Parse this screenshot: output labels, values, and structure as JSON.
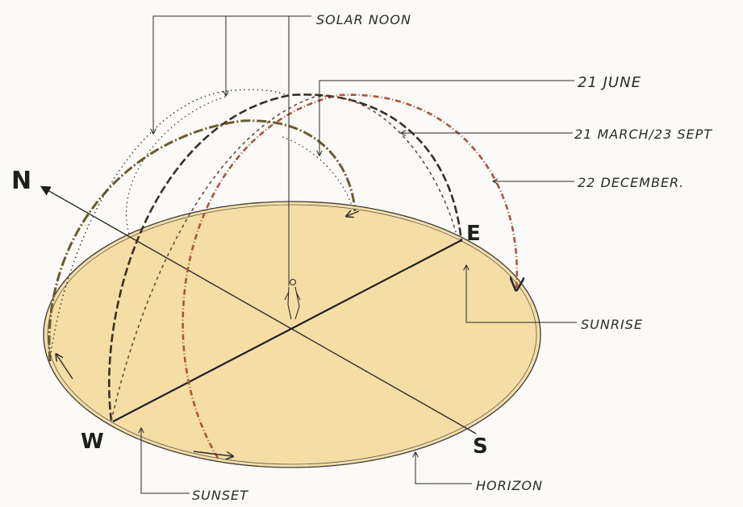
{
  "diagram": {
    "cardinals": {
      "north": "N",
      "east": "E",
      "south": "S",
      "west": "W"
    },
    "labels": {
      "solar_noon": "SOLAR NOON",
      "june": "21 JUNE",
      "march_sept": "21 MARCH/23 SEPT",
      "december": "22 DECEMBER.",
      "sunrise": "SUNRISE",
      "sunset": "SUNSET",
      "horizon": "HORIZON"
    },
    "colors": {
      "ground": "#f3d48a",
      "ink": "#2b2b2b",
      "june_path": "#6b5a2e",
      "equinox_path": "#3a2f24",
      "december_path": "#a8553f"
    }
  }
}
